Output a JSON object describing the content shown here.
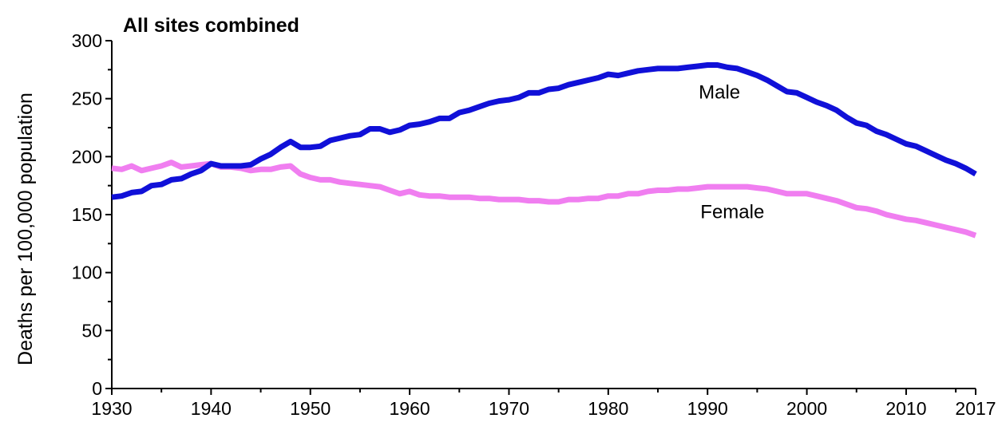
{
  "chart_data": {
    "type": "line",
    "title": "All sites combined",
    "xlabel": "",
    "ylabel": "Deaths per 100,000 population",
    "xlim": [
      1930,
      2017
    ],
    "ylim": [
      0,
      300
    ],
    "x_ticks": [
      1930,
      1940,
      1950,
      1960,
      1970,
      1980,
      1990,
      2000,
      2010,
      2017
    ],
    "y_ticks": [
      0,
      50,
      100,
      150,
      200,
      250,
      300
    ],
    "grid": false,
    "legend": "none",
    "series": [
      {
        "name": "Male",
        "color": "#1010d8",
        "x": [
          1930,
          1931,
          1932,
          1933,
          1934,
          1935,
          1936,
          1937,
          1938,
          1939,
          1940,
          1941,
          1942,
          1943,
          1944,
          1945,
          1946,
          1947,
          1948,
          1949,
          1950,
          1951,
          1952,
          1953,
          1954,
          1955,
          1956,
          1957,
          1958,
          1959,
          1960,
          1961,
          1962,
          1963,
          1964,
          1965,
          1966,
          1967,
          1968,
          1969,
          1970,
          1971,
          1972,
          1973,
          1974,
          1975,
          1976,
          1977,
          1978,
          1979,
          1980,
          1981,
          1982,
          1983,
          1984,
          1985,
          1986,
          1987,
          1988,
          1989,
          1990,
          1991,
          1992,
          1993,
          1994,
          1995,
          1996,
          1997,
          1998,
          1999,
          2000,
          2001,
          2002,
          2003,
          2004,
          2005,
          2006,
          2007,
          2008,
          2009,
          2010,
          2011,
          2012,
          2013,
          2014,
          2015,
          2016,
          2017
        ],
        "values": [
          165,
          166,
          169,
          170,
          175,
          176,
          180,
          181,
          185,
          188,
          194,
          192,
          192,
          192,
          193,
          198,
          202,
          208,
          213,
          208,
          208,
          209,
          214,
          216,
          218,
          219,
          224,
          224,
          221,
          223,
          227,
          228,
          230,
          233,
          233,
          238,
          240,
          243,
          246,
          248,
          249,
          251,
          255,
          255,
          258,
          259,
          262,
          264,
          266,
          268,
          271,
          270,
          272,
          274,
          275,
          276,
          276,
          276,
          277,
          278,
          279,
          279,
          277,
          276,
          273,
          270,
          266,
          261,
          256,
          255,
          251,
          247,
          244,
          240,
          234,
          229,
          227,
          222,
          219,
          215,
          211,
          209,
          205,
          201,
          197,
          194,
          190,
          185
        ]
      },
      {
        "name": "Female",
        "color": "#f07ef0",
        "x": [
          1930,
          1931,
          1932,
          1933,
          1934,
          1935,
          1936,
          1937,
          1938,
          1939,
          1940,
          1941,
          1942,
          1943,
          1944,
          1945,
          1946,
          1947,
          1948,
          1949,
          1950,
          1951,
          1952,
          1953,
          1954,
          1955,
          1956,
          1957,
          1958,
          1959,
          1960,
          1961,
          1962,
          1963,
          1964,
          1965,
          1966,
          1967,
          1968,
          1969,
          1970,
          1971,
          1972,
          1973,
          1974,
          1975,
          1976,
          1977,
          1978,
          1979,
          1980,
          1981,
          1982,
          1983,
          1984,
          1985,
          1986,
          1987,
          1988,
          1989,
          1990,
          1991,
          1992,
          1993,
          1994,
          1995,
          1996,
          1997,
          1998,
          1999,
          2000,
          2001,
          2002,
          2003,
          2004,
          2005,
          2006,
          2007,
          2008,
          2009,
          2010,
          2011,
          2012,
          2013,
          2014,
          2015,
          2016,
          2017
        ],
        "values": [
          190,
          189,
          192,
          188,
          190,
          192,
          195,
          191,
          192,
          193,
          194,
          191,
          191,
          190,
          188,
          189,
          189,
          191,
          192,
          185,
          182,
          180,
          180,
          178,
          177,
          176,
          175,
          174,
          171,
          168,
          170,
          167,
          166,
          166,
          165,
          165,
          165,
          164,
          164,
          163,
          163,
          163,
          162,
          162,
          161,
          161,
          163,
          163,
          164,
          164,
          166,
          166,
          168,
          168,
          170,
          171,
          171,
          172,
          172,
          173,
          174,
          174,
          174,
          174,
          174,
          173,
          172,
          170,
          168,
          168,
          168,
          166,
          164,
          162,
          159,
          156,
          155,
          153,
          150,
          148,
          146,
          145,
          143,
          141,
          139,
          137,
          135,
          132
        ]
      }
    ],
    "annotations": [
      {
        "text": "Male",
        "x": 1991.2,
        "y": 250
      },
      {
        "text": "Female",
        "x": 1992.5,
        "y": 147
      }
    ]
  }
}
